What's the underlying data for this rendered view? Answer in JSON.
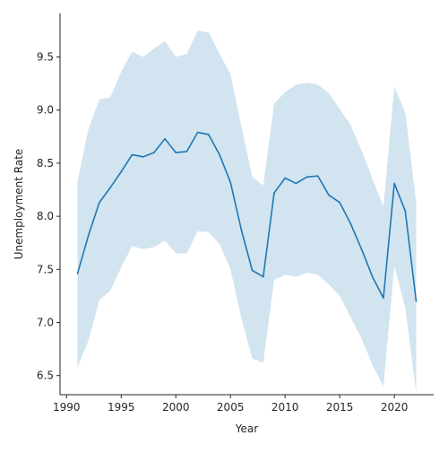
{
  "chart_data": {
    "type": "line",
    "xlabel": "Year",
    "ylabel": "Unemployment Rate",
    "xlim": [
      1989.4,
      2023.6
    ],
    "ylim": [
      6.32,
      9.91
    ],
    "xticks": [
      1990,
      1995,
      2000,
      2005,
      2010,
      2015,
      2020
    ],
    "yticks": [
      6.5,
      7.0,
      7.5,
      8.0,
      8.5,
      9.0,
      9.5
    ],
    "ytick_labels": [
      "6.5",
      "7.0",
      "7.5",
      "8.0",
      "8.5",
      "9.0",
      "9.5"
    ],
    "grid": false,
    "line_color": "#1f77b4",
    "band_color": "#1f77b4",
    "band_opacity": 0.2,
    "x": [
      1991,
      1992,
      1993,
      1994,
      1995,
      1996,
      1997,
      1998,
      1999,
      2000,
      2001,
      2002,
      2003,
      2004,
      2005,
      2006,
      2007,
      2008,
      2009,
      2010,
      2011,
      2012,
      2013,
      2014,
      2015,
      2016,
      2017,
      2018,
      2019,
      2020,
      2021,
      2022
    ],
    "series": [
      {
        "values": [
          7.46,
          7.82,
          8.13,
          8.27,
          8.42,
          8.58,
          8.56,
          8.6,
          8.73,
          8.6,
          8.61,
          8.79,
          8.77,
          8.58,
          8.32,
          7.87,
          7.49,
          7.43,
          8.22,
          8.36,
          8.31,
          8.37,
          8.38,
          8.2,
          8.13,
          7.93,
          7.69,
          7.43,
          7.23,
          8.31,
          8.05,
          7.2
        ],
        "lower": [
          6.58,
          6.83,
          7.21,
          7.3,
          7.52,
          7.72,
          7.69,
          7.71,
          7.77,
          7.65,
          7.65,
          7.86,
          7.85,
          7.74,
          7.5,
          7.04,
          6.66,
          6.62,
          7.4,
          7.45,
          7.43,
          7.47,
          7.45,
          7.36,
          7.25,
          7.05,
          6.85,
          6.6,
          6.4,
          7.53,
          7.14,
          6.34
        ],
        "upper": [
          8.33,
          8.82,
          9.1,
          9.12,
          9.36,
          9.55,
          9.5,
          9.58,
          9.65,
          9.5,
          9.53,
          9.75,
          9.73,
          9.53,
          9.34,
          8.85,
          8.37,
          8.29,
          9.06,
          9.17,
          9.24,
          9.26,
          9.24,
          9.16,
          9.01,
          8.86,
          8.62,
          8.35,
          8.09,
          9.22,
          8.98,
          8.13
        ]
      }
    ]
  }
}
